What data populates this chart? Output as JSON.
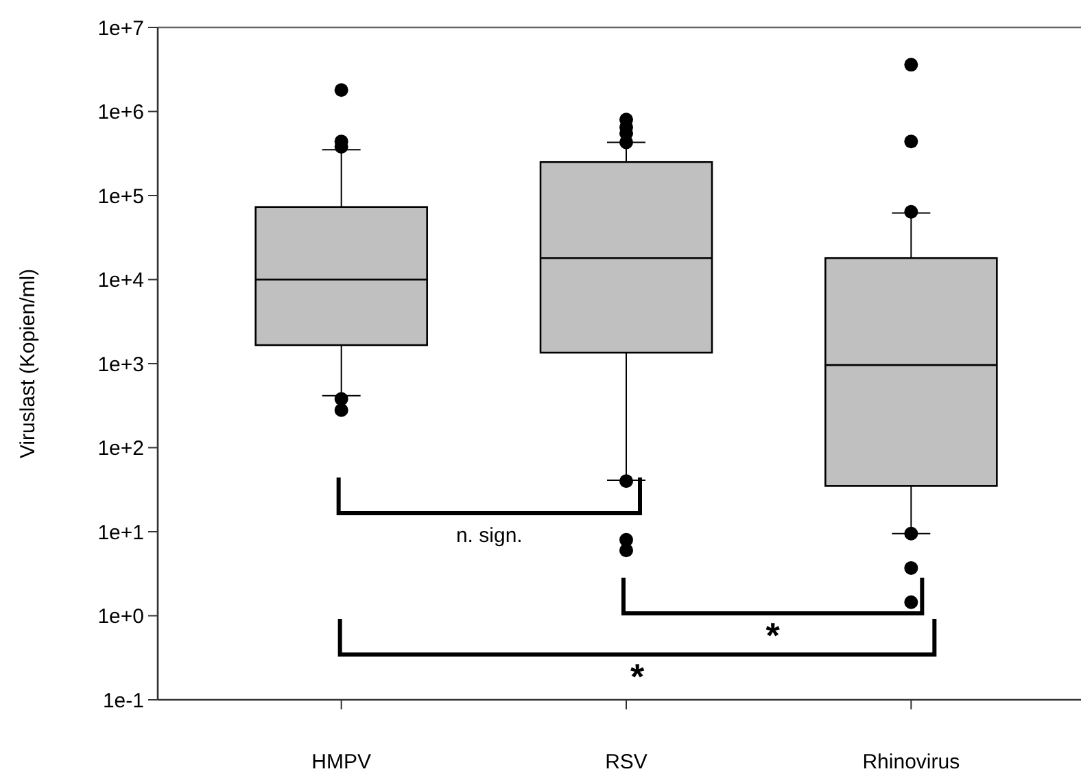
{
  "chart_data": {
    "type": "box",
    "ylabel": "Viruslast  (Kopien/ml)",
    "categories": [
      "HMPV",
      "RSV",
      "Rhinovirus"
    ],
    "color": "#c0c0c0",
    "log": true,
    "boxes": [
      {
        "low": 415,
        "q1": 1660,
        "median": 10000,
        "q3": 73000,
        "high": 350000,
        "outliers": [
          1800000,
          440000,
          380000,
          380,
          280
        ]
      },
      {
        "low": 41,
        "q1": 1350,
        "median": 18000,
        "q3": 250000,
        "high": 430000,
        "outliers": [
          800000,
          650000,
          550000,
          430000,
          40,
          8,
          6
        ]
      },
      {
        "low": 9.5,
        "q1": 35,
        "median": 960,
        "q3": 18000,
        "high": 62000,
        "outliers": [
          3600000,
          440000,
          64000,
          9.5,
          3.7,
          1.45
        ]
      }
    ],
    "ylim": [
      0.1,
      10000000
    ],
    "yticks": [
      {
        "value": 0.1,
        "label": "1e-1"
      },
      {
        "value": 1,
        "label": "1e+0"
      },
      {
        "value": 10,
        "label": "1e+1"
      },
      {
        "value": 100,
        "label": "1e+2"
      },
      {
        "value": 1000,
        "label": "1e+3"
      },
      {
        "value": 10000,
        "label": "1e+4"
      },
      {
        "value": 100000,
        "label": "1e+5"
      },
      {
        "value": 1000000,
        "label": "1e+6"
      },
      {
        "value": 10000000,
        "label": "1e+7"
      }
    ],
    "annotations": [
      "n. sign.",
      "*",
      "*"
    ]
  }
}
